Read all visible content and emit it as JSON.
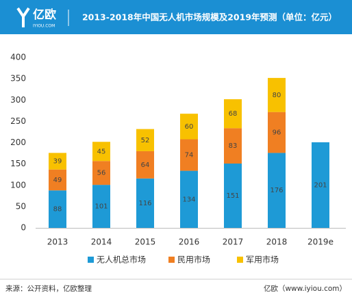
{
  "header": {
    "logo": "亿欧",
    "logo_sub": "IYIOU.COM"
  },
  "chart_data": {
    "type": "stacked-bar",
    "title": "2013-2018年中国无人机市场规模及2019年预测（单位：亿元）",
    "categories": [
      "2013",
      "2014",
      "2015",
      "2016",
      "2017",
      "2018",
      "2019e"
    ],
    "series": [
      {
        "name": "无人机总市场",
        "color": "#1e9ad6",
        "values": [
          88,
          101,
          116,
          134,
          151,
          176,
          201
        ]
      },
      {
        "name": "民用市场",
        "color": "#f07f22",
        "values": [
          49,
          56,
          64,
          74,
          83,
          96,
          null
        ]
      },
      {
        "name": "军用市场",
        "color": "#f8c100",
        "values": [
          39,
          45,
          52,
          60,
          68,
          80,
          null
        ]
      }
    ],
    "ylim": [
      0,
      400
    ],
    "yticks": [
      0,
      50,
      100,
      150,
      200,
      250,
      300,
      350,
      400
    ],
    "grid": false,
    "legend": "bottom"
  },
  "footer": {
    "source": "来源：公开资料，亿欧整理",
    "brand": "亿欧（www.iyiou.com）"
  }
}
